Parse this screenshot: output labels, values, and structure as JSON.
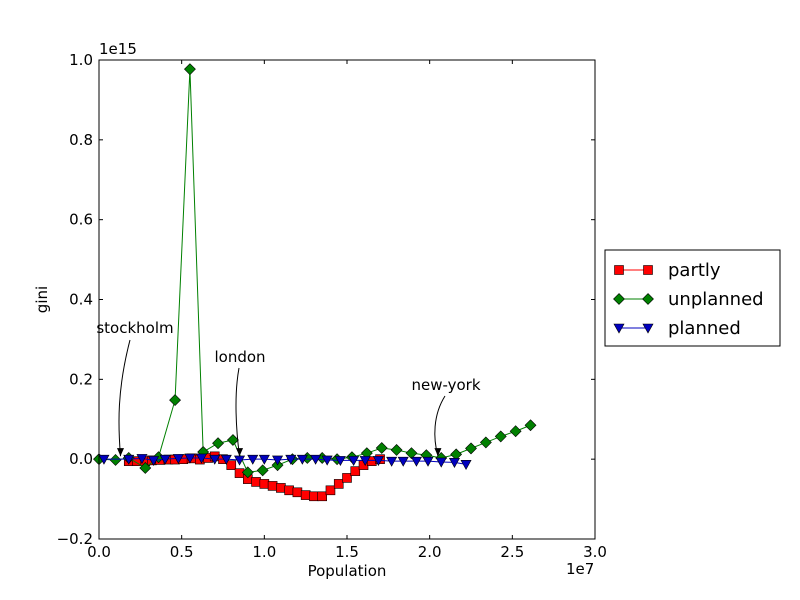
{
  "chart_data": {
    "type": "line",
    "title": "",
    "xlabel": "Population",
    "ylabel": "gini",
    "xlim": [
      0,
      30000000
    ],
    "ylim": [
      -200000000000000,
      1000000000000000
    ],
    "x_ticks": [
      0,
      5000000,
      10000000,
      15000000,
      20000000,
      25000000,
      30000000
    ],
    "x_tick_labels": [
      "0.0",
      "0.5",
      "1.0",
      "1.5",
      "2.0",
      "2.5",
      "3.0"
    ],
    "x_multiplier_label": "1e7",
    "y_ticks": [
      -200000000000000,
      0,
      200000000000000,
      400000000000000,
      600000000000000,
      800000000000000,
      1000000000000000
    ],
    "y_tick_labels": [
      "−0.2",
      "0.0",
      "0.2",
      "0.4",
      "0.6",
      "0.8",
      "1.0"
    ],
    "y_multiplier_label": "1e15",
    "grid": false,
    "legend_position": "outside-right",
    "series": [
      {
        "name": "partly",
        "color": "#ff0000",
        "marker": "square",
        "x": [
          1800000,
          2300000,
          2800000,
          3200000,
          3700000,
          4200000,
          4600000,
          5100000,
          5600000,
          6100000,
          6600000,
          7000000,
          7500000,
          8000000,
          8500000,
          9000000,
          9500000,
          10000000,
          10500000,
          11000000,
          11500000,
          12000000,
          12500000,
          13000000,
          13500000,
          14000000,
          14500000,
          15000000,
          15500000,
          16000000,
          16500000,
          17000000
        ],
        "y": [
          -5000000000000,
          -5000000000000,
          -5000000000000,
          -3000000000000,
          -2000000000000,
          -1000000000000,
          -1000000000000,
          0,
          2000000000000,
          -1000000000000,
          3000000000000,
          7000000000000,
          0,
          -15000000000000,
          -35000000000000,
          -50000000000000,
          -57000000000000,
          -62000000000000,
          -67000000000000,
          -72000000000000,
          -78000000000000,
          -83000000000000,
          -90000000000000,
          -93000000000000,
          -93000000000000,
          -78000000000000,
          -62000000000000,
          -47000000000000,
          -30000000000000,
          -15000000000000,
          -5000000000000,
          0
        ]
      },
      {
        "name": "unplanned",
        "color": "#008000",
        "marker": "diamond",
        "x": [
          0,
          1000000,
          1800000,
          2800000,
          3600000,
          4600000,
          5500000,
          6300000,
          7200000,
          8100000,
          9000000,
          9900000,
          10800000,
          11700000,
          12600000,
          13500000,
          14400000,
          15300000,
          16200000,
          17100000,
          18000000,
          18900000,
          19800000,
          20700000,
          21600000,
          22500000,
          23400000,
          24300000,
          25200000,
          26100000
        ],
        "y": [
          0,
          -2000000000000,
          3000000000000,
          -22000000000000,
          5000000000000,
          148000000000000,
          977000000000000,
          18000000000000,
          40000000000000,
          48000000000000,
          -33000000000000,
          -28000000000000,
          -15000000000000,
          0,
          3000000000000,
          3000000000000,
          0,
          5000000000000,
          15000000000000,
          28000000000000,
          23000000000000,
          15000000000000,
          10000000000000,
          3000000000000,
          12000000000000,
          27000000000000,
          42000000000000,
          57000000000000,
          70000000000000,
          85000000000000
        ]
      },
      {
        "name": "planned",
        "color": "#0000bf",
        "marker": "triangle-down",
        "x": [
          300000,
          1800000,
          2600000,
          3300000,
          4000000,
          4800000,
          5500000,
          6200000,
          7000000,
          7700000,
          8500000,
          9300000,
          10000000,
          10800000,
          11600000,
          12300000,
          13100000,
          13800000,
          14600000,
          15400000,
          16100000,
          16900000,
          17700000,
          18400000,
          19200000,
          19900000,
          20700000,
          21500000,
          22200000
        ],
        "y": [
          0,
          0,
          2000000000000,
          -3000000000000,
          0,
          2000000000000,
          3000000000000,
          3000000000000,
          0,
          0,
          -2000000000000,
          0,
          0,
          -2000000000000,
          0,
          0,
          0,
          -2000000000000,
          -3000000000000,
          -3000000000000,
          -3000000000000,
          -3000000000000,
          -5000000000000,
          -5000000000000,
          -5000000000000,
          -5000000000000,
          -7000000000000,
          -8000000000000,
          -13000000000000
        ]
      }
    ],
    "annotations": [
      {
        "text": "stockholm",
        "x": 1300000,
        "y": 0
      },
      {
        "text": "london",
        "x": 8500000,
        "y": 0
      },
      {
        "text": "new-york",
        "x": 20500000,
        "y": 0
      }
    ]
  }
}
